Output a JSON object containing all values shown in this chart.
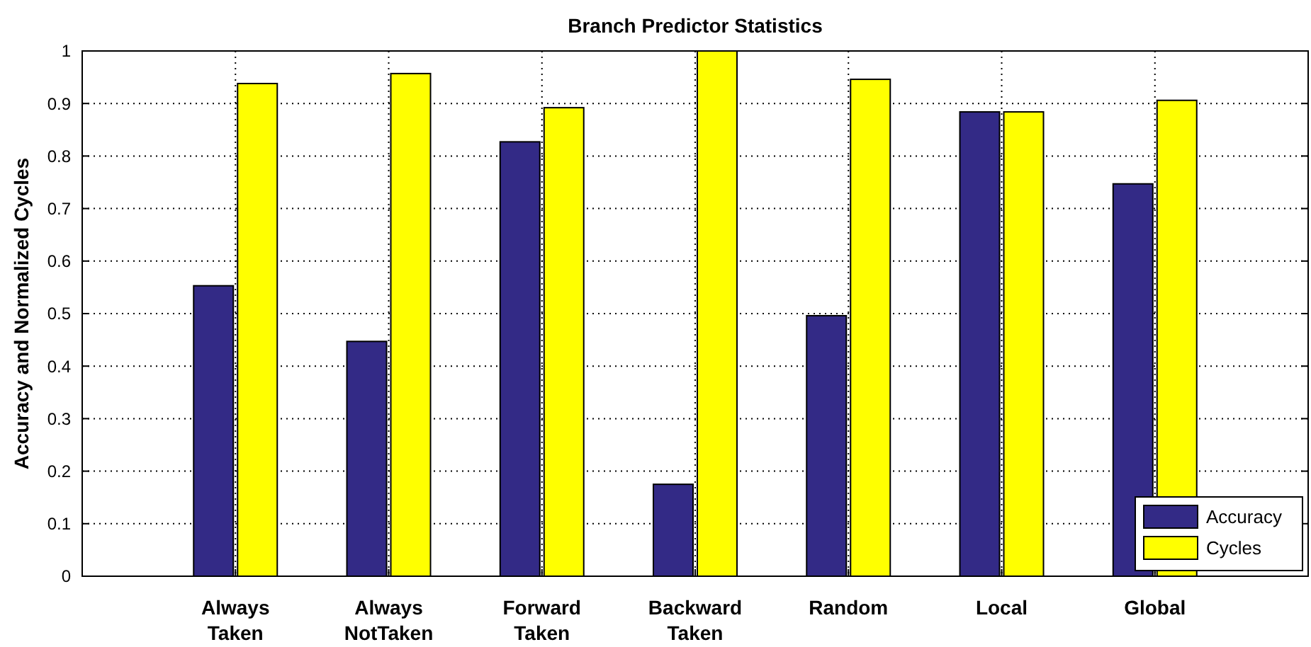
{
  "chart_data": {
    "type": "bar",
    "title": "Branch Predictor Statistics",
    "ylabel": "Accuracy and Normalized Cycles",
    "categories": [
      "Always Taken",
      "Always NotTaken",
      "Forward Taken",
      "Backward Taken",
      "Random",
      "Local",
      "Global"
    ],
    "series": [
      {
        "name": "Accuracy",
        "color": "#332a86",
        "values": [
          0.553,
          0.447,
          0.827,
          0.175,
          0.496,
          0.884,
          0.747
        ]
      },
      {
        "name": "Cycles",
        "color": "#ffff00",
        "values": [
          0.938,
          0.957,
          0.892,
          1.0,
          0.946,
          0.884,
          0.906
        ]
      }
    ],
    "ylim": [
      0,
      1
    ],
    "yticks": [
      0,
      0.1,
      0.2,
      0.3,
      0.4,
      0.5,
      0.6,
      0.7,
      0.8,
      0.9,
      1
    ],
    "grid": true,
    "legend": "bottom right"
  }
}
